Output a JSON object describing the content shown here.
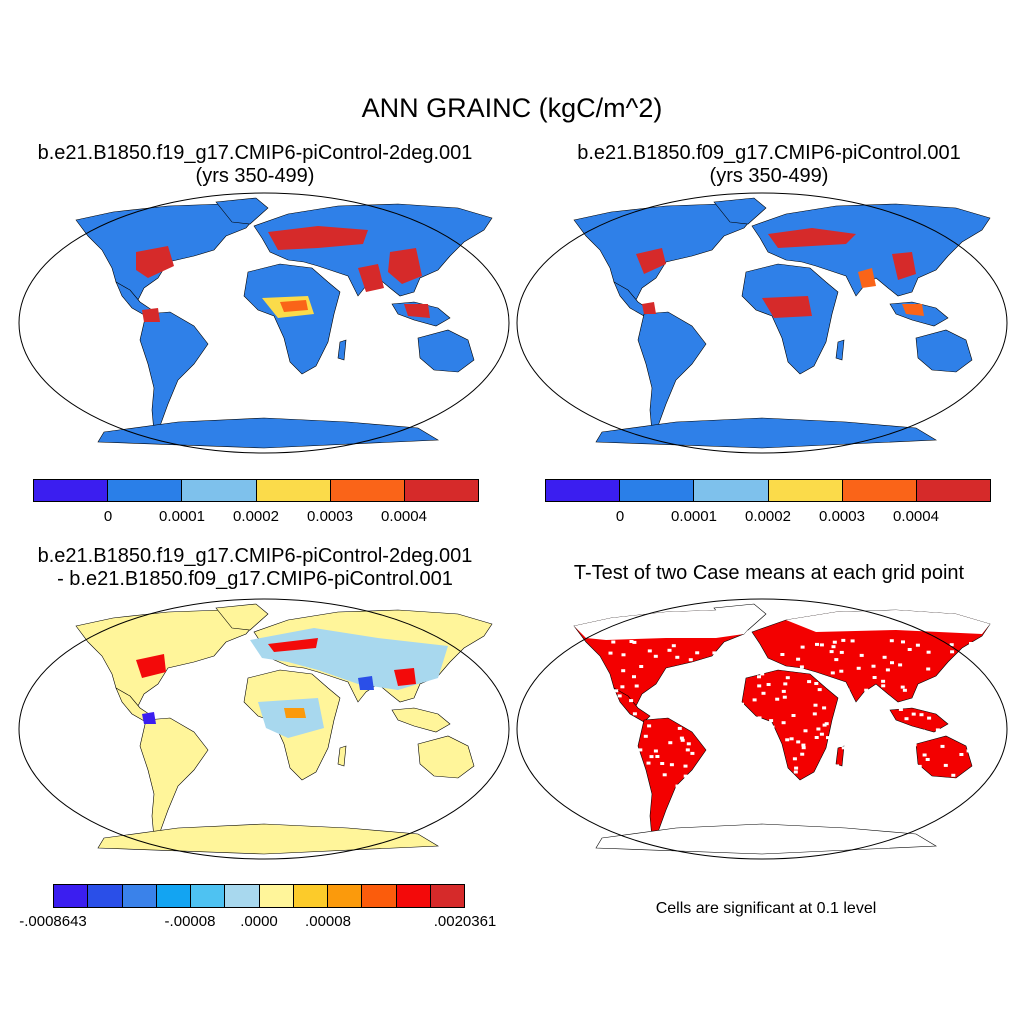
{
  "main_title": "ANN GRAINC (kgC/m^2)",
  "panels": [
    {
      "title_line1": "b.e21.B1850.f19_g17.CMIP6-piControl-2deg.001",
      "title_line2": "(yrs 350-499)"
    },
    {
      "title_line1": "b.e21.B1850.f09_g17.CMIP6-piControl.001",
      "title_line2": "(yrs 350-499)"
    },
    {
      "title_line1": "b.e21.B1850.f19_g17.CMIP6-piControl-2deg.001",
      "title_line2": "- b.e21.B1850.f09_g17.CMIP6-piControl.001"
    },
    {
      "title_line1": "T-Test of two Case means at each grid point"
    }
  ],
  "colorbars": {
    "case": {
      "colors": [
        "#3b1ef0",
        "#2a7fe8",
        "#7ec1ec",
        "#fbdb4a",
        "#fa6418",
        "#d62a2a"
      ],
      "labels": [
        "0",
        "0.0001",
        "0.0002",
        "0.0003",
        "0.0004"
      ]
    },
    "diff": {
      "colors": [
        "#3b1ef0",
        "#2a4fe8",
        "#3a82ea",
        "#13a4f2",
        "#4ec2f2",
        "#a8d8ee",
        "#fff59a",
        "#fccb2a",
        "#fb9a0c",
        "#fb5c0c",
        "#f30a0a",
        "#d62a2a"
      ],
      "labels": [
        ".0008643",
        ".00008",
        ".0000",
        ".00008",
        ".0020361"
      ],
      "label_signs": [
        "-",
        "-",
        "",
        "",
        ""
      ]
    }
  },
  "significance_note": "Cells are significant at 0.1 level",
  "map_colors": {
    "ocean": "#ffffff",
    "land_base": [
      "#2f80e8",
      "#2f80e8",
      "#fff59a",
      "#ffffff"
    ],
    "sig": "#f30000"
  }
}
